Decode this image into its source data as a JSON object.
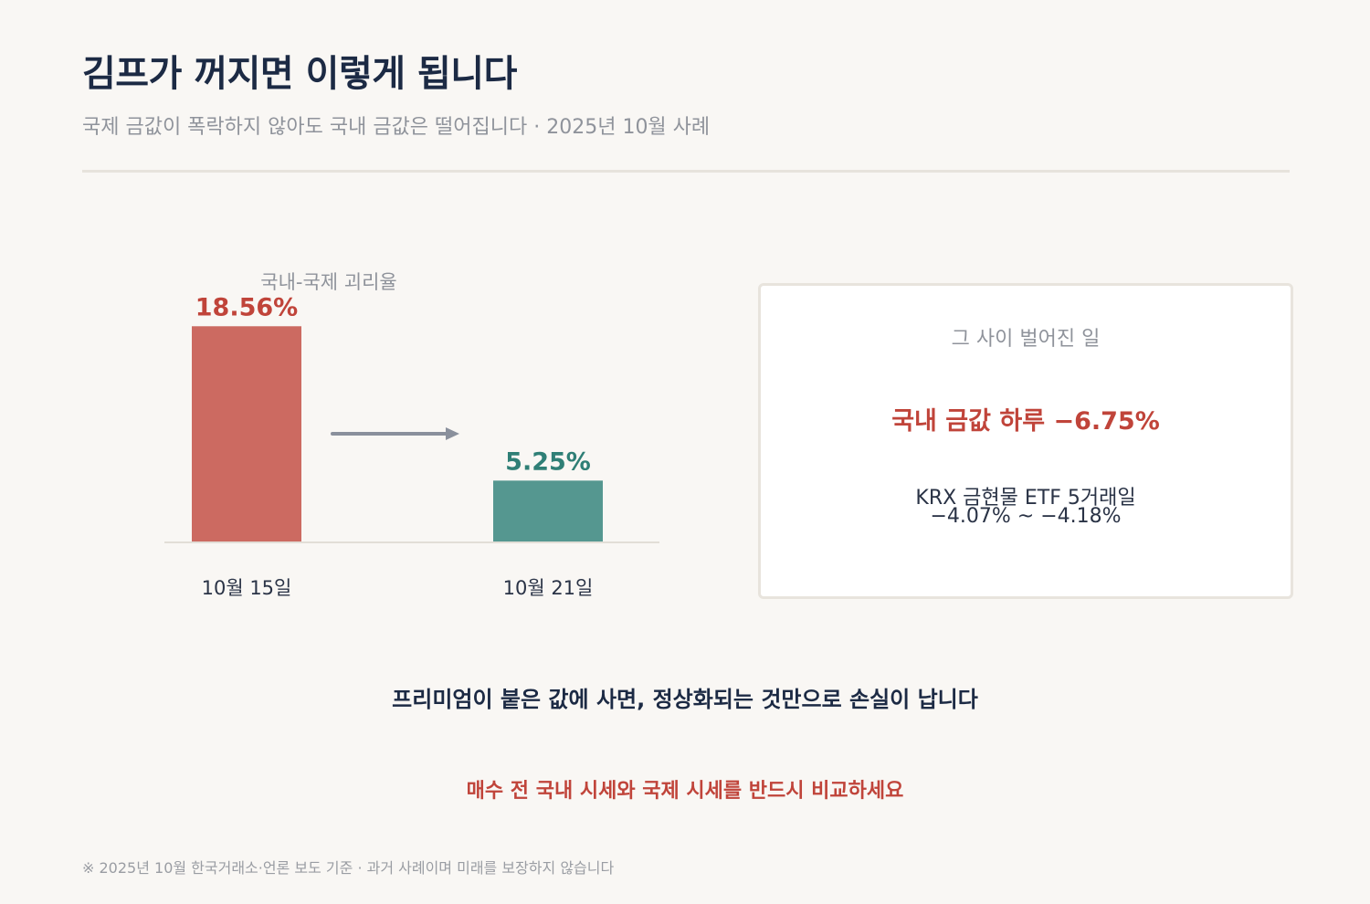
{
  "header": {
    "title": "김프가 꺼지면 이렇게 됩니다",
    "subtitle": "국제 금값이 폭락하지 않아도 국내 금값은 떨어집니다 · 2025년 10월 사례"
  },
  "chart_data": {
    "type": "bar",
    "title": "국내-국제 괴리율",
    "categories": [
      "10월 15일",
      "10월 21일"
    ],
    "values": [
      18.56,
      5.25
    ],
    "value_labels": [
      "18.56%",
      "5.25%"
    ],
    "unit": "%",
    "colors": [
      "#cc6a61",
      "#559790"
    ],
    "label_colors": [
      "#c0443a",
      "#2f7f76"
    ],
    "ylim": [
      0,
      20
    ],
    "grid": false,
    "legend": "none"
  },
  "card": {
    "heading": "그 사이 벌어진 일",
    "main": "국내 금값 하루 −6.75%",
    "detail_line1": "KRX 금현물 ETF 5거래일",
    "detail_line2": "−4.07% ~ −4.18%"
  },
  "message": "프리미엄이 붙은 값에 사면, 정상화되는 것만으로 손실이 납니다",
  "cta": "매수 전 국내 시세와 국제 시세를 반드시 비교하세요",
  "footnote": "※ 2025년 10월 한국거래소·언론 보도 기준 · 과거 사례이며 미래를 보장하지 않습니다",
  "colors": {
    "accent_red": "#c0443a",
    "accent_teal": "#2f7f76",
    "arrow": "#8a909c",
    "navy": "#1c2a44"
  }
}
